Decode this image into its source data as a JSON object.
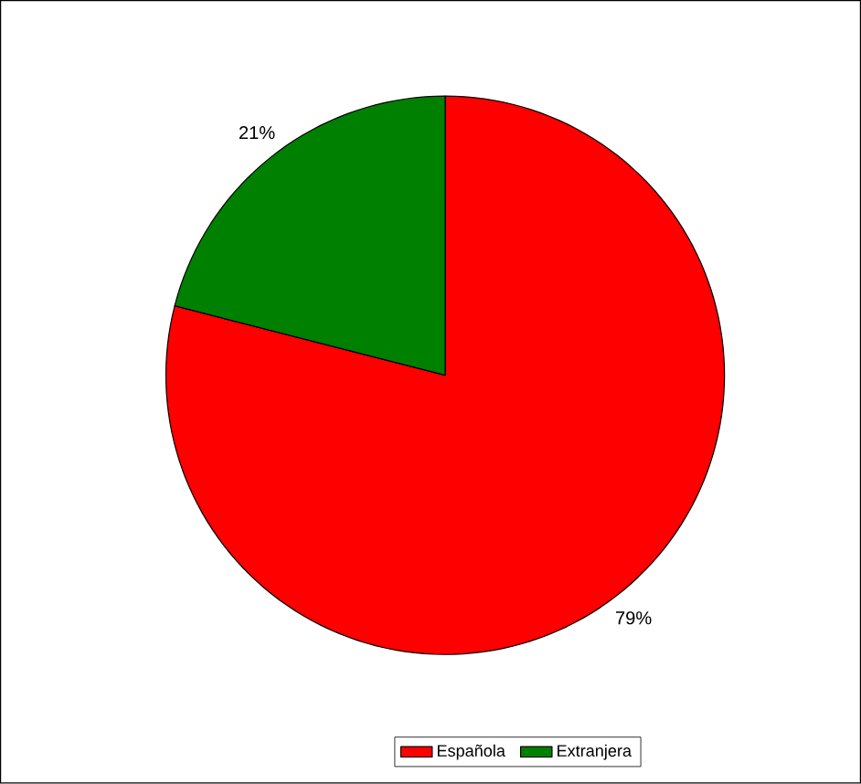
{
  "chart_data": {
    "type": "pie",
    "categories": [
      "Española",
      "Extranjera"
    ],
    "values": [
      79,
      21
    ],
    "colors": [
      "#ff0000",
      "#008000"
    ],
    "value_labels": [
      "79%",
      "21%"
    ],
    "legend": "bottom"
  }
}
